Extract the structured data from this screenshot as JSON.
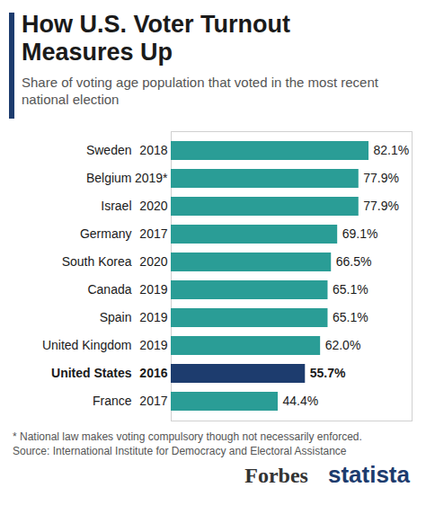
{
  "chart_data": {
    "type": "bar",
    "orientation": "horizontal",
    "title": "How U.S. Voter Turnout Measures Up",
    "subtitle": "Share of voting age population that voted in the most recent national election",
    "categories": [
      "Sweden",
      "Belgium",
      "Israel",
      "Germany",
      "South Korea",
      "Canada",
      "Spain",
      "United Kingdom",
      "United States",
      "France"
    ],
    "years": [
      "2018",
      "2019*",
      "2020",
      "2017",
      "2020",
      "2019",
      "2019",
      "2019",
      "2016",
      "2017"
    ],
    "values": [
      82.1,
      77.9,
      77.9,
      69.1,
      66.5,
      65.1,
      65.1,
      62.0,
      55.7,
      44.4
    ],
    "value_labels": [
      "82.1%",
      "77.9%",
      "77.9%",
      "69.1%",
      "66.5%",
      "65.1%",
      "65.1%",
      "62.0%",
      "55.7%",
      "44.4%"
    ],
    "colors": [
      "#2a9d96",
      "#2a9d96",
      "#2a9d96",
      "#2a9d96",
      "#2a9d96",
      "#2a9d96",
      "#2a9d96",
      "#2a9d96",
      "#1d3c6e",
      "#2a9d96"
    ],
    "xlim": [
      0,
      100
    ],
    "xticks": [],
    "tick_labels": "y",
    "data_labels": true,
    "footnote": "* National law makes voting compulsory though not necessarily enforced.",
    "source": "Source: International Institute for Democracy and Electoral Assistance",
    "credits": [
      "Forbes",
      "statista"
    ]
  }
}
